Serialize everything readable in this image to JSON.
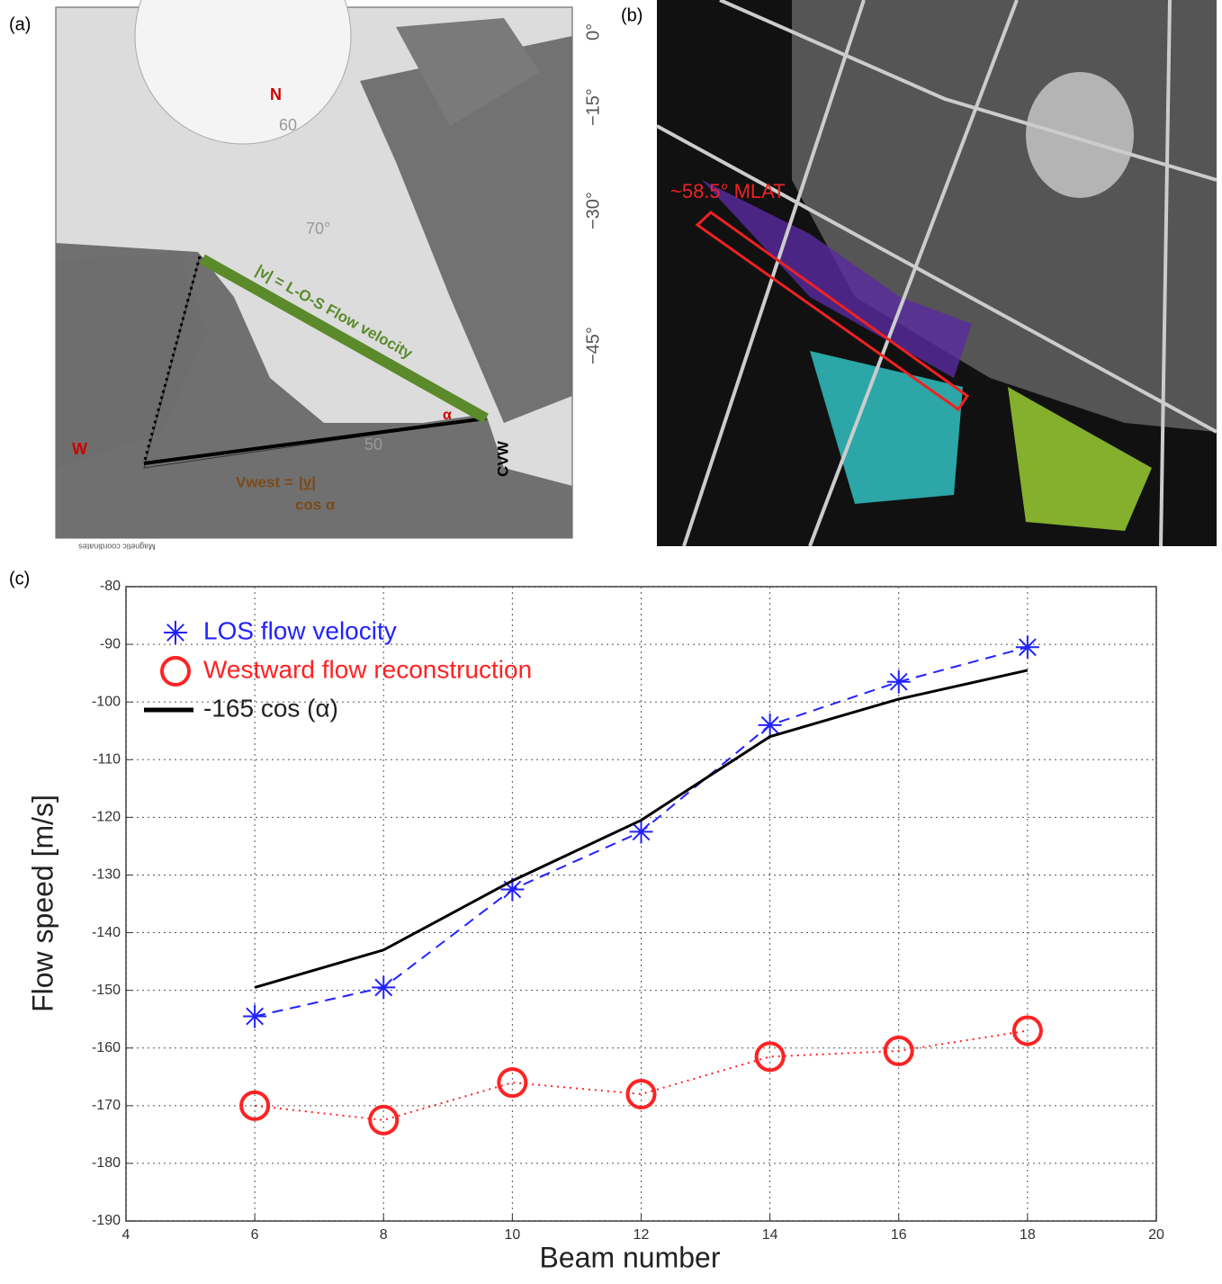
{
  "panel_a": {
    "label": "(a)",
    "north": "N",
    "west": "W",
    "lat_60": "60",
    "lat_70": "70°",
    "lat_50": "50",
    "lon_0": "0°",
    "lon_15": "−15°",
    "lon_30": "−30°",
    "lon_45": "−45°",
    "arrow_label": "|v| = L-O-S Flow velocity",
    "alpha": "α",
    "radar": "CVW",
    "formula_lhs": "Vwest =",
    "formula_num": "|v|",
    "formula_den": "cos α",
    "coords": "Magnetic coordinates"
  },
  "panel_b": {
    "label": "(b)",
    "mlat": "~58.5° MLAT"
  },
  "chart_data": {
    "type": "line",
    "label": "(c)",
    "x_label": "Beam number",
    "y_label": "Flow speed [m/s]",
    "x": [
      6,
      8,
      10,
      12,
      14,
      16,
      18
    ],
    "series": [
      {
        "name": "LOS flow velocity",
        "color": "#2222ff",
        "line_style": "dashed",
        "marker": "star",
        "values": [
          -154.5,
          -149.5,
          -132.5,
          -122.5,
          -104,
          -96.5,
          -90.5
        ]
      },
      {
        "name": "Westward flow reconstruction",
        "color": "#ff2222",
        "line_style": "dotted",
        "marker": "circle",
        "values": [
          -170,
          -172.5,
          -166,
          -168,
          -161.5,
          -160.5,
          -157
        ]
      },
      {
        "name": "-165 cos (α)",
        "color": "#000000",
        "line_style": "solid",
        "marker": "none",
        "values": [
          -149.5,
          -143,
          -131,
          -120.5,
          -106,
          -99.5,
          -94.5
        ]
      }
    ],
    "xlim": [
      4,
      20
    ],
    "xticks": [
      4,
      6,
      8,
      10,
      12,
      14,
      16,
      18,
      20
    ],
    "ylim": [
      -190,
      -80
    ],
    "yticks": [
      -80,
      -90,
      -100,
      -110,
      -120,
      -130,
      -140,
      -150,
      -160,
      -170,
      -180,
      -190
    ],
    "grid": true,
    "legend": "upper left"
  }
}
